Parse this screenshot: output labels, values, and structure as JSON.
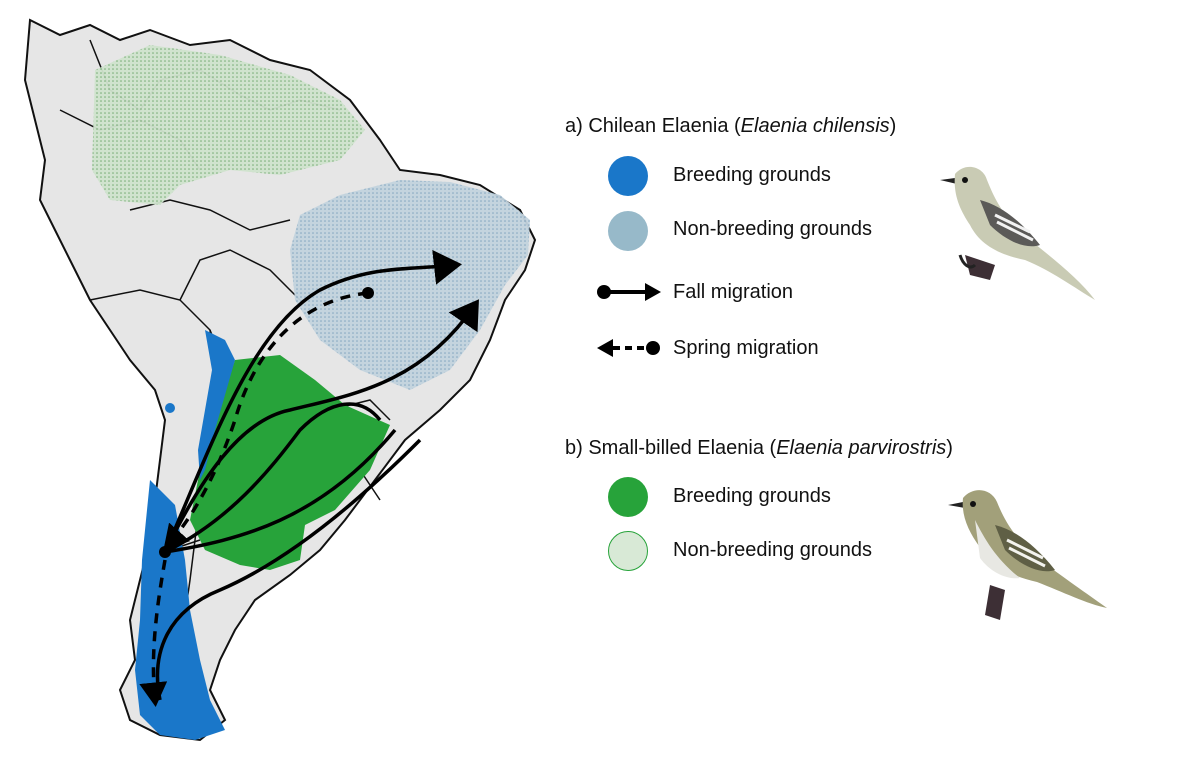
{
  "colors": {
    "land": "#e6e6e6",
    "border": "#111111",
    "chilensis_breeding": "#1a77c9",
    "chilensis_nonbreeding": "#a6c4d6",
    "parvirostris_breeding": "#27a33a",
    "parvirostris_nonbreeding": "#b9d6b7",
    "route": "#000000"
  },
  "legend": {
    "a": {
      "prefix": "a) Chilean Elaenia (",
      "scientific": "Elaenia chilensis",
      "suffix": ")",
      "breeding": "Breeding grounds",
      "nonbreeding": "Non-breeding grounds",
      "fall": "Fall migration",
      "spring": "Spring migration"
    },
    "b": {
      "prefix": "b) Small-billed Elaenia (",
      "scientific": "Elaenia parvirostris",
      "suffix": ")",
      "breeding": "Breeding grounds",
      "nonbreeding": "Non-breeding grounds"
    }
  },
  "icons": [
    "south-america-map",
    "chilean-elaenia-bird",
    "small-billed-elaenia-bird",
    "arrow-solid",
    "arrow-dashed"
  ]
}
